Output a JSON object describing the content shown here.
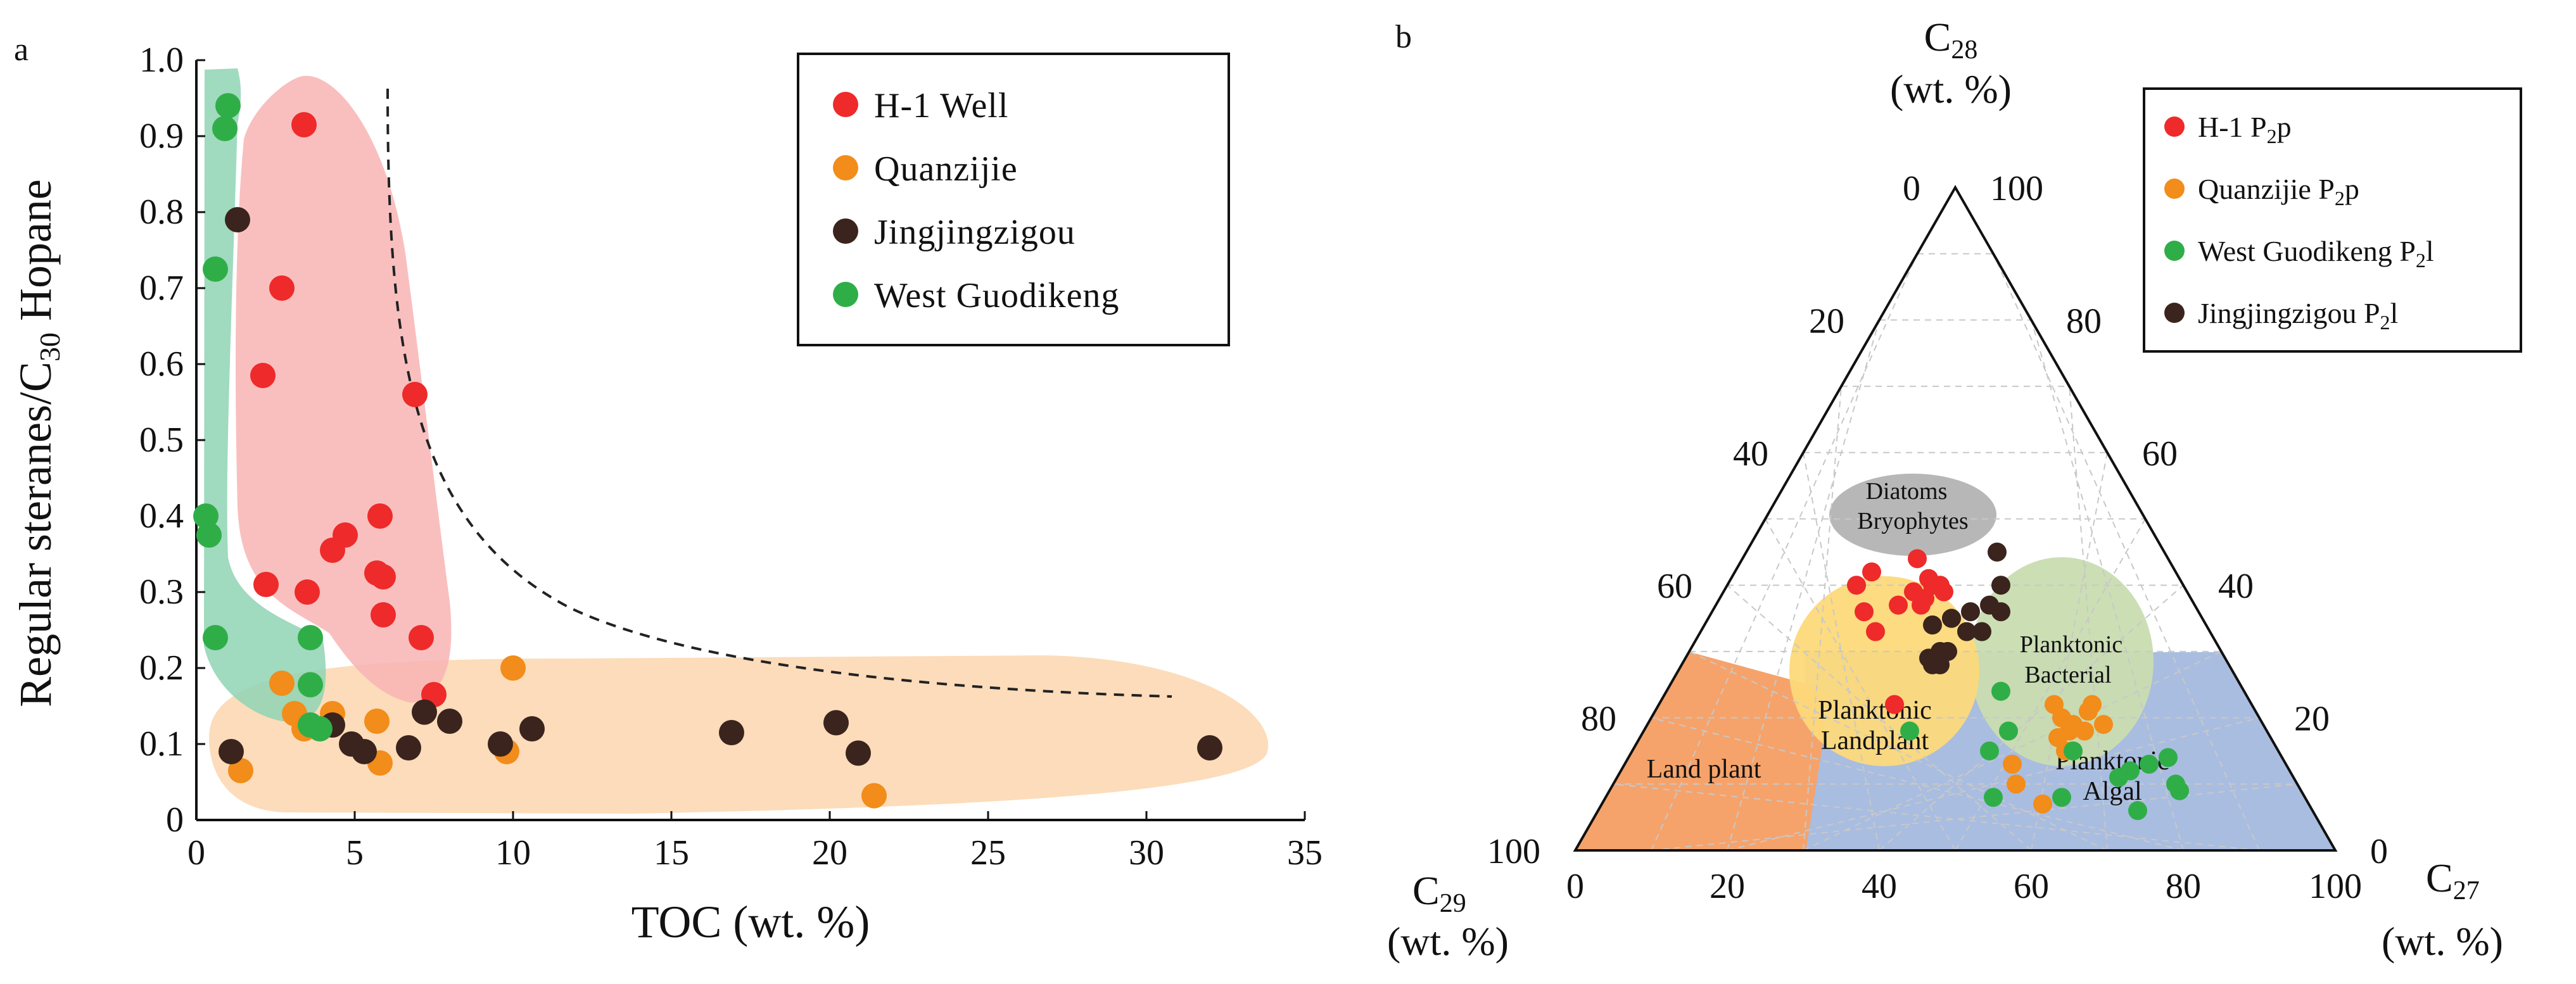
{
  "chart_data": [
    {
      "panel": "a",
      "type": "scatter",
      "xlabel": "TOC (wt. %)",
      "ylabel_main": "Regular steranes/C",
      "ylabel_sub": "30",
      "ylabel_tail": " Hopane",
      "xlim": [
        0,
        35
      ],
      "ylim": [
        0,
        1.0
      ],
      "x_ticks": [
        "0",
        "5",
        "10",
        "15",
        "20",
        "25",
        "30",
        "35"
      ],
      "y_ticks": [
        "0",
        "0.1",
        "0.2",
        "0.3",
        "0.4",
        "0.5",
        "0.6",
        "0.7",
        "0.8",
        "0.9",
        "1.0"
      ],
      "series": [
        {
          "name": "H-1  Well",
          "color": "#ee2a2a",
          "points": [
            [
              3.4,
              0.915
            ],
            [
              2.7,
              0.7
            ],
            [
              2.1,
              0.585
            ],
            [
              6.9,
              0.56
            ],
            [
              5.8,
              0.4
            ],
            [
              4.7,
              0.375
            ],
            [
              4.3,
              0.355
            ],
            [
              5.7,
              0.325
            ],
            [
              5.9,
              0.32
            ],
            [
              2.2,
              0.31
            ],
            [
              3.5,
              0.3
            ],
            [
              5.9,
              0.27
            ],
            [
              7.1,
              0.24
            ],
            [
              7.5,
              0.165
            ]
          ]
        },
        {
          "name": "Quanzijie",
          "color": "#f28c1a",
          "points": [
            [
              10.0,
              0.2
            ],
            [
              2.7,
              0.18
            ],
            [
              4.3,
              0.14
            ],
            [
              5.7,
              0.13
            ],
            [
              3.1,
              0.14
            ],
            [
              3.4,
              0.12
            ],
            [
              9.8,
              0.09
            ],
            [
              5.8,
              0.075
            ],
            [
              1.4,
              0.065
            ],
            [
              21.4,
              0.032
            ]
          ]
        },
        {
          "name": "Jingjingzigou",
          "color": "#3a241d",
          "points": [
            [
              1.3,
              0.79
            ],
            [
              7.2,
              0.142
            ],
            [
              8.0,
              0.13
            ],
            [
              4.3,
              0.125
            ],
            [
              10.6,
              0.12
            ],
            [
              16.9,
              0.115
            ],
            [
              20.2,
              0.128
            ],
            [
              9.6,
              0.1
            ],
            [
              4.9,
              0.1
            ],
            [
              6.7,
              0.095
            ],
            [
              5.3,
              0.09
            ],
            [
              20.9,
              0.088
            ],
            [
              1.1,
              0.09
            ],
            [
              32.0,
              0.095
            ]
          ]
        },
        {
          "name": "West  Guodikeng",
          "color": "#2fae48",
          "points": [
            [
              1.0,
              0.94
            ],
            [
              0.9,
              0.91
            ],
            [
              0.6,
              0.725
            ],
            [
              0.3,
              0.4
            ],
            [
              0.4,
              0.375
            ],
            [
              0.6,
              0.24
            ],
            [
              3.6,
              0.24
            ],
            [
              3.6,
              0.178
            ],
            [
              3.6,
              0.125
            ],
            [
              3.9,
              0.12
            ]
          ]
        }
      ]
    },
    {
      "panel": "b",
      "type": "scatter",
      "subtype": "ternary",
      "apex_top_main": "C",
      "apex_top_sub": "28",
      "apex_unit": "(wt. %)",
      "apex_left_main": "C",
      "apex_left_sub": "29",
      "apex_right_main": "C",
      "apex_right_sub": "27",
      "bottom_ticks": [
        "0",
        "20",
        "40",
        "60",
        "80",
        "100"
      ],
      "left_ticks": [
        "0",
        "20",
        "40",
        "60",
        "80",
        "100"
      ],
      "right_ticks": [
        "100",
        "80",
        "60",
        "40",
        "20",
        "0"
      ],
      "regions": [
        "Diatoms",
        "Bryophytes",
        "Planktonic",
        "Bacterial",
        "Planktonic",
        "Landplant",
        "Land plant",
        "Planktonic",
        "Algal"
      ],
      "legend": [
        {
          "main": "H-1 P",
          "sub": "2",
          "tail": "p",
          "color": "#ee2a2a"
        },
        {
          "main": "Quanzijie P",
          "sub": "2",
          "tail": "p",
          "color": "#f28c1a"
        },
        {
          "main": "West  Guodikeng P",
          "sub": "2",
          "tail": "l",
          "color": "#2fae48"
        },
        {
          "main": "Jingjingzigou P",
          "sub": "2",
          "tail": "l",
          "color": "#3a241d"
        }
      ],
      "series": [
        {
          "name": "H-1 P2p (C28, C27)",
          "color": "#ee2a2a",
          "points": [
            [
              36,
              20
            ],
            [
              40,
              17
            ],
            [
              42,
              18
            ],
            [
              33,
              23
            ],
            [
              39,
              25
            ],
            [
              37,
              27
            ],
            [
              40,
              28
            ],
            [
              41,
              26
            ],
            [
              38,
              27
            ],
            [
              39,
              29
            ],
            [
              40,
              27
            ],
            [
              37,
              24
            ],
            [
              22,
              31
            ],
            [
              44,
              23
            ]
          ]
        },
        {
          "name": "Quanzijie P2p (C28, C27)",
          "color": "#f28c1a",
          "points": [
            [
              15,
              58
            ],
            [
              18,
              56
            ],
            [
              20,
              54
            ],
            [
              22,
              52
            ],
            [
              15,
              57
            ],
            [
              19,
              60
            ],
            [
              17,
              55
            ],
            [
              21,
              57
            ],
            [
              13,
              51
            ],
            [
              10,
              53
            ],
            [
              22,
              57
            ],
            [
              19,
              56
            ],
            [
              18,
              58
            ],
            [
              7,
              58
            ]
          ]
        },
        {
          "name": "West Guodikeng P2l (C28, C27)",
          "color": "#2fae48",
          "points": [
            [
              18,
              48
            ],
            [
              24,
              44
            ],
            [
              15,
              47
            ],
            [
              8,
              51
            ],
            [
              8,
              60
            ],
            [
              11,
              66
            ],
            [
              18,
              35
            ],
            [
              14,
              71
            ],
            [
              13,
              69
            ],
            [
              10,
              74
            ],
            [
              12,
              67
            ],
            [
              6,
              71
            ],
            [
              9,
              75
            ],
            [
              15,
              58
            ]
          ]
        },
        {
          "name": "Jingjingzigou P2l (C28, C27)",
          "color": "#3a241d",
          "points": [
            [
              45,
              33
            ],
            [
              40,
              36
            ],
            [
              35,
              32
            ],
            [
              37,
              36
            ],
            [
              36,
              38
            ],
            [
              36,
              34
            ],
            [
              33,
              35
            ],
            [
              33,
              37
            ],
            [
              35,
              32
            ],
            [
              34,
              30
            ],
            [
              30,
              33
            ],
            [
              30,
              34
            ],
            [
              29,
              32
            ],
            [
              28,
              34
            ],
            [
              28,
              33
            ]
          ]
        }
      ]
    }
  ]
}
